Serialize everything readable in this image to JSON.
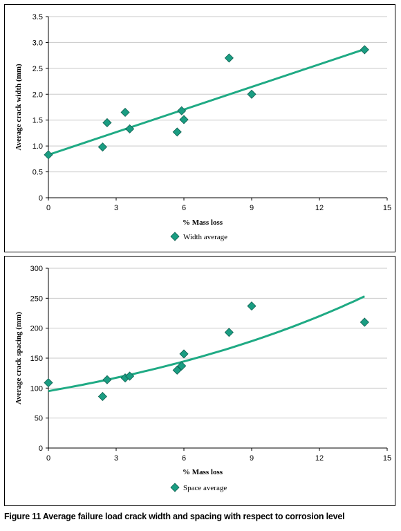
{
  "caption": "Figure 11 Average failure load crack width and spacing with respect to corrosion level",
  "colors": {
    "marker": "#1a9d82",
    "marker_stroke": "#0f5f4f",
    "trend": "#1faa84",
    "grid": "#c8c8c8",
    "axis": "#000000"
  },
  "chart_data": [
    {
      "type": "scatter",
      "xlabel": "% Mass loss",
      "ylabel": "Average crack width (mm)",
      "xlim": [
        0,
        15
      ],
      "ylim": [
        0,
        3.5
      ],
      "xticks": [
        0,
        3,
        6,
        9,
        12,
        15
      ],
      "yticks": [
        0,
        0.5,
        1.0,
        1.5,
        2.0,
        2.5,
        3.0,
        3.5
      ],
      "ytick_labels": [
        "0",
        "0.5",
        "1.0",
        "1.5",
        "2.0",
        "2.5",
        "3.0",
        "3.5"
      ],
      "grid": "horizontal",
      "legend": "bottom-center",
      "series": [
        {
          "name": "Width average",
          "marker": "diamond",
          "x": [
            0,
            2.4,
            2.6,
            3.4,
            3.6,
            5.7,
            5.9,
            6.0,
            8.0,
            9.0,
            14.0
          ],
          "y": [
            0.83,
            0.98,
            1.45,
            1.65,
            1.33,
            1.27,
            1.68,
            1.51,
            2.7,
            2.0,
            2.86
          ]
        }
      ],
      "trendline": {
        "type": "linear",
        "x": [
          0,
          14
        ],
        "y": [
          0.83,
          2.87
        ]
      }
    },
    {
      "type": "scatter",
      "xlabel": "% Mass loss",
      "ylabel": "Average crack spacing (mm)",
      "xlim": [
        0,
        15
      ],
      "ylim": [
        0,
        300
      ],
      "xticks": [
        0,
        3,
        6,
        9,
        12,
        15
      ],
      "yticks": [
        0,
        50,
        100,
        150,
        200,
        250,
        300
      ],
      "ytick_labels": [
        "0",
        "50",
        "100",
        "150",
        "200",
        "250",
        "300"
      ],
      "grid": "horizontal",
      "legend": "bottom-center",
      "series": [
        {
          "name": "Space average",
          "marker": "diamond",
          "x": [
            0,
            2.4,
            2.6,
            3.4,
            3.6,
            5.7,
            5.9,
            6.0,
            8.0,
            9.0,
            14.0
          ],
          "y": [
            109,
            86,
            114,
            117,
            120,
            130,
            137,
            157,
            193,
            237,
            210
          ]
        }
      ],
      "trendline": {
        "type": "exponential",
        "a": 95,
        "b": 0.07
      }
    }
  ]
}
